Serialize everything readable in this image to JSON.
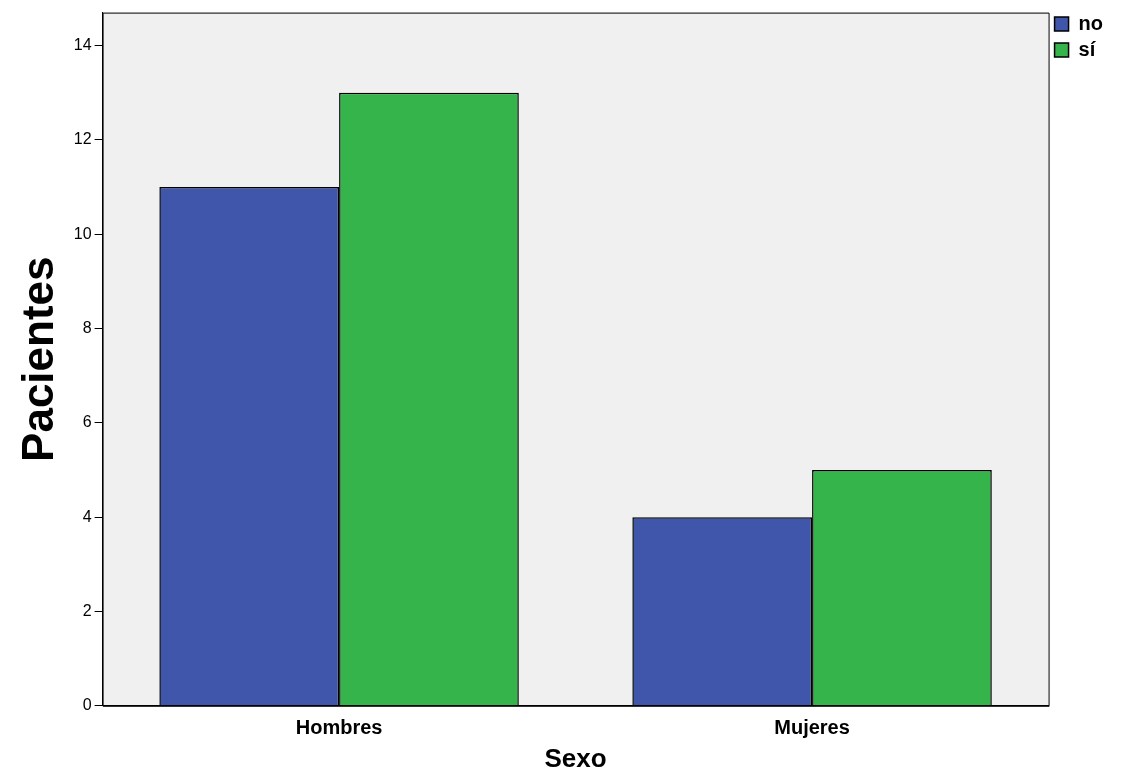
{
  "chart_data": {
    "type": "bar",
    "xlabel": "Sexo",
    "ylabel": "Pacientes",
    "categories": [
      "Hombres",
      "Mujeres"
    ],
    "series": [
      {
        "name": "no",
        "color": "#3f56aa",
        "values": [
          11,
          4
        ]
      },
      {
        "name": "sí",
        "color": "#34b44a",
        "values": [
          13,
          5
        ]
      }
    ],
    "ylim": [
      0,
      14.7
    ],
    "yticks": [
      0,
      2,
      4,
      6,
      8,
      10,
      12,
      14
    ],
    "grid": false,
    "legend": "top right"
  }
}
